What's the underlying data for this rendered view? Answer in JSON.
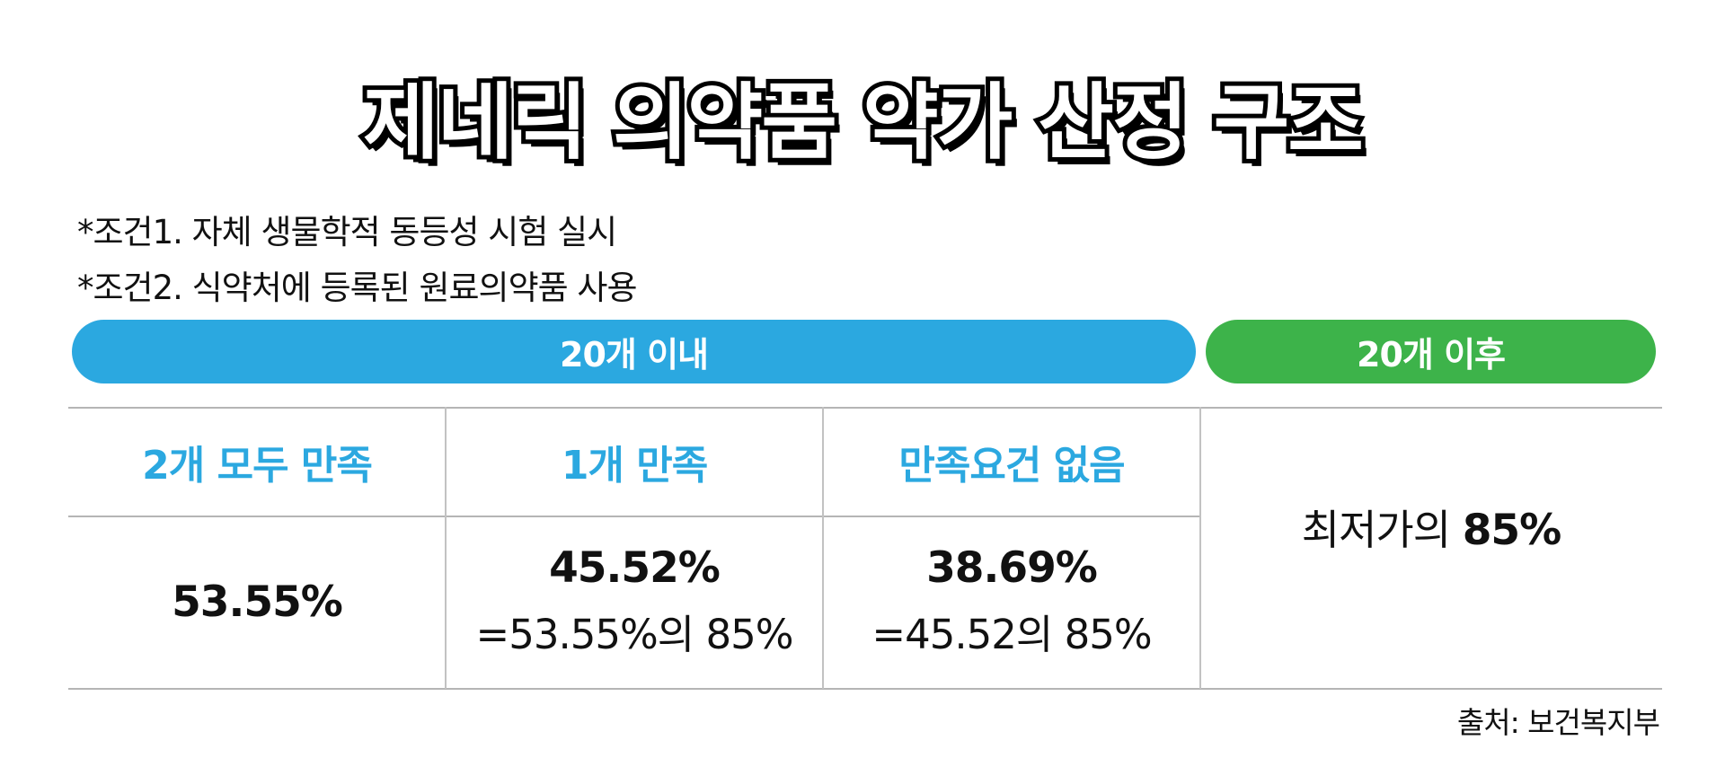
{
  "title": "제네릭 의약품 약가 산정 구조",
  "conditions": [
    "*조건1. 자체 생물학적 동등성 시험 실시",
    "*조건2. 식약처에 등록된 원료의약품 사용"
  ],
  "pills": {
    "within": "20개 이내",
    "after": "20개 이후"
  },
  "colors": {
    "blue": "#2ba8e0",
    "green": "#3db34a"
  },
  "table": {
    "headers": [
      "2개 모두 만족",
      "1개 만족",
      "만족요건 없음"
    ],
    "values": [
      {
        "main": "53.55%",
        "sub": ""
      },
      {
        "main": "45.52%",
        "sub": "=53.55%의 85%"
      },
      {
        "main": "38.69%",
        "sub": "=45.52의 85%"
      }
    ],
    "after": {
      "prefix": "최저가의 ",
      "value": "85%"
    }
  },
  "source": "출처: 보건복지부"
}
